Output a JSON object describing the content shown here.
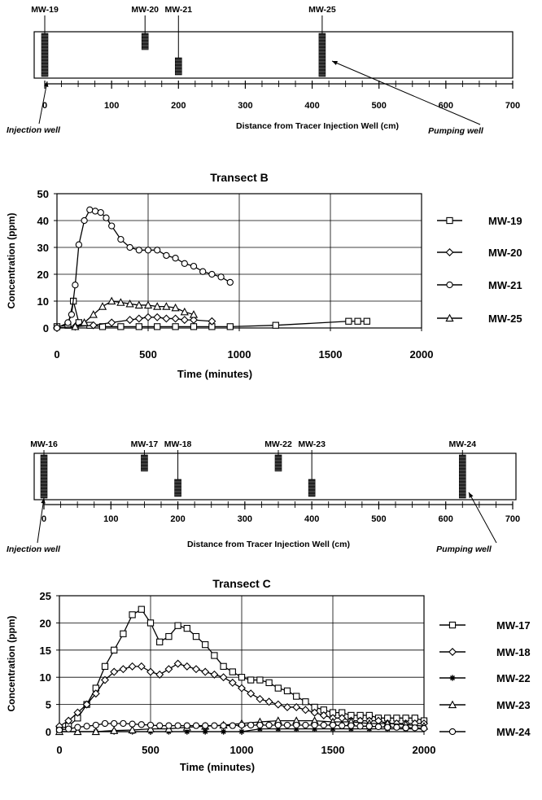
{
  "schematics": [
    {
      "wells": [
        {
          "name": "MW-19",
          "distance": 0,
          "depth": "full"
        },
        {
          "name": "MW-20",
          "distance": 150,
          "depth": "shallow"
        },
        {
          "name": "MW-21",
          "distance": 200,
          "depth": "deep"
        },
        {
          "name": "MW-25",
          "distance": 415,
          "depth": "full"
        }
      ],
      "xaxis": {
        "min": 0,
        "max": 700,
        "ticks": [
          0,
          100,
          200,
          300,
          400,
          500,
          600,
          700
        ],
        "minor_step": 25
      },
      "xlabel": "Distance from Tracer Injection Well (cm)",
      "left_annotation": "Injection well",
      "right_annotation": "Pumping well"
    },
    {
      "wells": [
        {
          "name": "MW-16",
          "distance": 0,
          "depth": "full"
        },
        {
          "name": "MW-17",
          "distance": 150,
          "depth": "shallow"
        },
        {
          "name": "MW-18",
          "distance": 200,
          "depth": "deep"
        },
        {
          "name": "MW-22",
          "distance": 350,
          "depth": "shallow"
        },
        {
          "name": "MW-23",
          "distance": 400,
          "depth": "deep"
        },
        {
          "name": "MW-24",
          "distance": 625,
          "depth": "full"
        }
      ],
      "xaxis": {
        "min": 0,
        "max": 700,
        "ticks": [
          0,
          100,
          200,
          300,
          400,
          500,
          600,
          700
        ],
        "minor_step": 25
      },
      "xlabel": "Distance from Tracer Injection Well (cm)",
      "left_annotation": "Injection well",
      "right_annotation": "Pumping well"
    }
  ],
  "chart_data": [
    {
      "type": "line",
      "title": "Transect B",
      "xlabel": "Time (minutes)",
      "ylabel": "Concentration (ppm)",
      "xlim": [
        0,
        2000
      ],
      "ylim": [
        0,
        50
      ],
      "xticks": [
        0,
        500,
        1000,
        1500,
        2000
      ],
      "yticks": [
        0,
        10,
        20,
        30,
        40,
        50
      ],
      "grid": true,
      "legend": "right",
      "series": [
        {
          "name": "MW-19",
          "marker": "square",
          "x": [
            0,
            60,
            90,
            120,
            180,
            250,
            350,
            450,
            550,
            650,
            750,
            850,
            950,
            1200,
            1600,
            1650,
            1700
          ],
          "y": [
            0.5,
            1,
            10,
            2,
            1,
            0.5,
            0.5,
            0.5,
            0.5,
            0.5,
            0.5,
            0.5,
            0.5,
            1,
            2.5,
            2.5,
            2.5
          ]
        },
        {
          "name": "MW-20",
          "marker": "diamond",
          "x": [
            0,
            100,
            200,
            300,
            400,
            450,
            500,
            550,
            600,
            650,
            700,
            750,
            850
          ],
          "y": [
            0,
            0.5,
            1,
            2,
            3,
            3.5,
            4,
            4,
            3.5,
            3.5,
            3,
            3,
            2.5
          ]
        },
        {
          "name": "MW-21",
          "marker": "circle",
          "x": [
            0,
            60,
            80,
            100,
            120,
            150,
            180,
            210,
            240,
            270,
            300,
            350,
            400,
            450,
            500,
            550,
            600,
            650,
            700,
            750,
            800,
            850,
            900,
            950
          ],
          "y": [
            0,
            2,
            5,
            16,
            31,
            40,
            44,
            43.5,
            43,
            41,
            38,
            33,
            30,
            29,
            29,
            29,
            27,
            26,
            24,
            23,
            21,
            20,
            19,
            17
          ]
        },
        {
          "name": "MW-25",
          "marker": "triangle",
          "x": [
            100,
            150,
            200,
            250,
            300,
            350,
            400,
            450,
            500,
            550,
            600,
            650,
            700,
            750
          ],
          "y": [
            0.5,
            2,
            5,
            8,
            10,
            9.5,
            9,
            8.5,
            8.5,
            8,
            8,
            7.5,
            6,
            5
          ]
        }
      ]
    },
    {
      "type": "line",
      "title": "Transect C",
      "xlabel": "Time (minutes)",
      "ylabel": "Concentration (ppm)",
      "xlim": [
        0,
        2000
      ],
      "ylim": [
        0,
        25
      ],
      "xticks": [
        0,
        500,
        1000,
        1500,
        2000
      ],
      "yticks": [
        0,
        5,
        10,
        15,
        20,
        25
      ],
      "grid": true,
      "legend": "right",
      "series": [
        {
          "name": "MW-17",
          "marker": "square",
          "x": [
            0,
            50,
            100,
            150,
            200,
            250,
            300,
            350,
            400,
            450,
            500,
            550,
            600,
            650,
            700,
            750,
            800,
            850,
            900,
            950,
            1000,
            1050,
            1100,
            1150,
            1200,
            1250,
            1300,
            1350,
            1400,
            1450,
            1500,
            1550,
            1600,
            1650,
            1700,
            1750,
            1800,
            1850,
            1900,
            1950,
            2000
          ],
          "y": [
            0.5,
            1,
            2.5,
            5,
            8,
            12,
            15,
            18,
            21.5,
            22.5,
            20,
            16.5,
            17.5,
            19.5,
            19,
            17.5,
            16,
            14,
            12,
            11,
            10,
            9.5,
            9.5,
            9,
            8,
            7.5,
            6.5,
            5.5,
            4.5,
            4,
            3.5,
            3.5,
            3,
            3,
            3,
            2.5,
            2.5,
            2.5,
            2.5,
            2.5,
            2
          ]
        },
        {
          "name": "MW-18",
          "marker": "diamond",
          "x": [
            0,
            50,
            100,
            150,
            200,
            250,
            300,
            350,
            400,
            450,
            500,
            550,
            600,
            650,
            700,
            750,
            800,
            850,
            900,
            950,
            1000,
            1050,
            1100,
            1150,
            1200,
            1250,
            1300,
            1350,
            1400,
            1450,
            1500,
            1550,
            1600,
            1650,
            1700,
            1750,
            1800,
            1850,
            1900,
            1950,
            2000
          ],
          "y": [
            1,
            2,
            3.5,
            5,
            7,
            9.5,
            11,
            11.5,
            12,
            12,
            11,
            10.5,
            11.5,
            12.5,
            12,
            11.5,
            11,
            10.5,
            10,
            9,
            8,
            7,
            6,
            5.5,
            5,
            4.5,
            4.5,
            4,
            3.5,
            3,
            2.5,
            2.5,
            2,
            2,
            2,
            2,
            1.5,
            1.5,
            1.5,
            1.5,
            1.5
          ]
        },
        {
          "name": "MW-22",
          "marker": "asterisk",
          "x": [
            0,
            100,
            200,
            300,
            400,
            500,
            600,
            700,
            800,
            900,
            1000,
            1100,
            1200,
            1300,
            1400,
            1500,
            1600,
            1700,
            1800,
            1900,
            2000
          ],
          "y": [
            0,
            0,
            0,
            0,
            0,
            0,
            0,
            0,
            0,
            0,
            0,
            0.5,
            0.5,
            0.5,
            0.5,
            0.5,
            0.5,
            0.5,
            0.5,
            0.5,
            0.5
          ]
        },
        {
          "name": "MW-23",
          "marker": "triangle",
          "x": [
            0,
            100,
            200,
            300,
            400,
            500,
            600,
            700,
            800,
            900,
            1000,
            1100,
            1200,
            1300,
            1400,
            1500,
            1600,
            1700,
            1800,
            1900,
            2000
          ],
          "y": [
            0,
            0,
            0,
            0.2,
            0.3,
            0.5,
            0.5,
            0.8,
            1,
            1.2,
            1.5,
            1.8,
            2,
            2,
            2,
            1.8,
            1.8,
            1.5,
            1.5,
            1.3,
            1
          ]
        },
        {
          "name": "MW-24",
          "marker": "circle",
          "x": [
            0,
            50,
            100,
            150,
            200,
            250,
            300,
            350,
            400,
            450,
            500,
            550,
            600,
            650,
            700,
            750,
            800,
            850,
            900,
            950,
            1000,
            1050,
            1100,
            1150,
            1200,
            1250,
            1300,
            1350,
            1400,
            1450,
            1500,
            1550,
            1600,
            1650,
            1700,
            1750,
            1800,
            1850,
            1900,
            1950,
            2000
          ],
          "y": [
            0.3,
            0.5,
            0.8,
            1,
            1.2,
            1.5,
            1.5,
            1.5,
            1.4,
            1.3,
            1.2,
            1.1,
            1.1,
            1.1,
            1.1,
            1.1,
            1.1,
            1.1,
            1.1,
            1.1,
            1.2,
            1.2,
            1.2,
            1.2,
            1.2,
            1.2,
            1.2,
            1.2,
            1.2,
            1.2,
            1.2,
            1.1,
            1.1,
            1,
            1,
            0.9,
            0.8,
            0.8,
            0.7,
            0.7,
            0.6
          ]
        }
      ]
    }
  ]
}
